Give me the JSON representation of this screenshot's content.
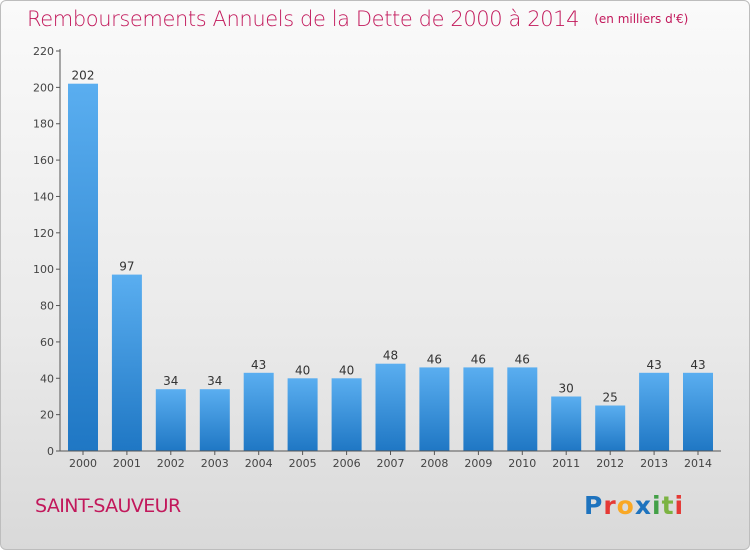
{
  "header": {
    "title": "Remboursements Annuels de la Dette de 2000 à 2014",
    "unit": "(en milliers d'€)"
  },
  "footer": {
    "city": "SAINT-SAUVEUR",
    "logo_text": "Proxiti"
  },
  "colors": {
    "accent": "#c2185b",
    "bar_top": "#5aaef0",
    "bar_bottom": "#1f77c4"
  },
  "chart_data": {
    "type": "bar",
    "title": "Remboursements Annuels de la Dette de 2000 à 2014",
    "subtitle": "(en milliers d'€)",
    "xlabel": "",
    "ylabel": "",
    "ylim": [
      0,
      220
    ],
    "yticks": [
      0,
      20,
      40,
      60,
      80,
      100,
      120,
      140,
      160,
      180,
      200,
      220
    ],
    "grid": false,
    "categories": [
      "2000",
      "2001",
      "2002",
      "2003",
      "2004",
      "2005",
      "2006",
      "2007",
      "2008",
      "2009",
      "2010",
      "2011",
      "2012",
      "2013",
      "2014"
    ],
    "values": [
      202,
      97,
      34,
      34,
      43,
      40,
      40,
      48,
      46,
      46,
      46,
      30,
      25,
      43,
      43
    ]
  }
}
